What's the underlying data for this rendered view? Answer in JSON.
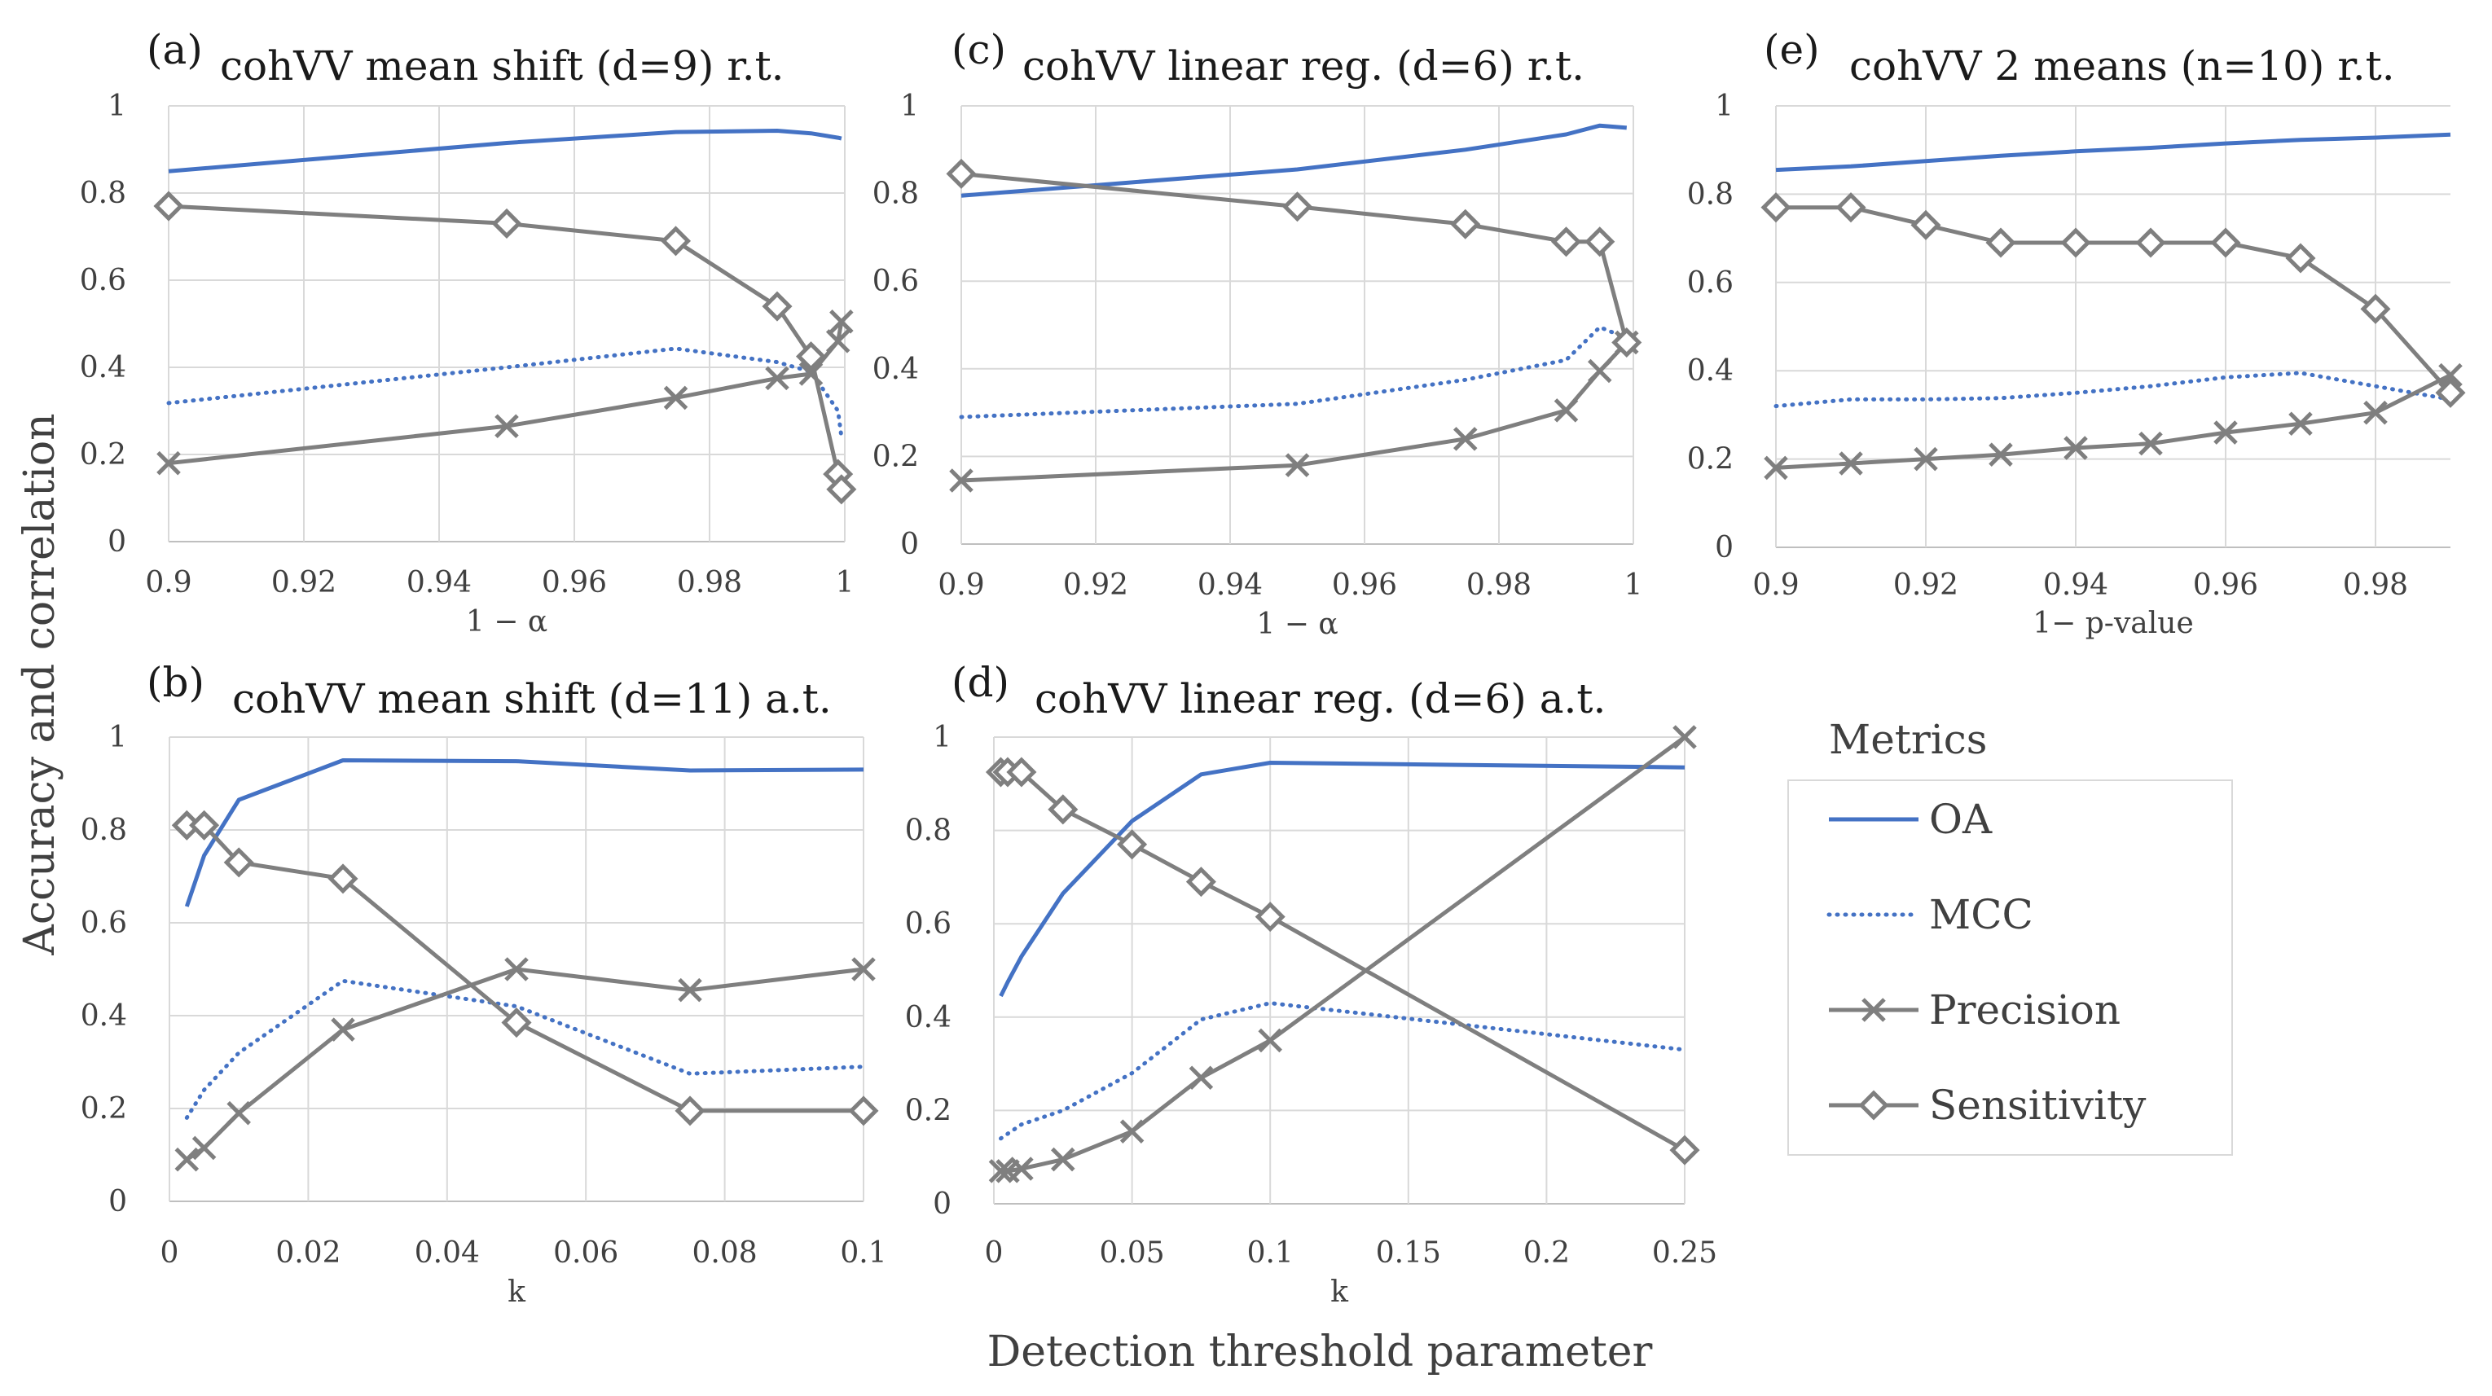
{
  "figure": {
    "ylabel": "Accuracy and correlation",
    "xlabel": "Detection threshold parameter"
  },
  "legend": {
    "title": "Metrics",
    "items": [
      {
        "name": "OA",
        "style": "solid",
        "color": "#4472C4",
        "marker": "none"
      },
      {
        "name": "MCC",
        "style": "dotted",
        "color": "#4472C4",
        "marker": "none"
      },
      {
        "name": "Precision",
        "style": "solid",
        "color": "#7F7F7F",
        "marker": "x"
      },
      {
        "name": "Sensitivity",
        "style": "solid",
        "color": "#7F7F7F",
        "marker": "diamond"
      }
    ]
  },
  "chart_data": [
    {
      "id": "a",
      "type": "line",
      "label": "(a)",
      "title": "cohVV mean shift (d=9) r.t.",
      "xlabel": "1 − α",
      "xlim": [
        0.9,
        1
      ],
      "ylim": [
        0,
        1
      ],
      "xticks": [
        0.9,
        0.92,
        0.94,
        0.96,
        0.98,
        1
      ],
      "xtick_labels": [
        "0.9",
        "0.92",
        "0.94",
        "0.96",
        "0.98",
        "1"
      ],
      "yticks": [
        0,
        0.2,
        0.4,
        0.6,
        0.8,
        1
      ],
      "ytick_labels": [
        "0",
        "0.2",
        "0.4",
        "0.6",
        "0.8",
        "1"
      ],
      "x": [
        0.9,
        0.95,
        0.975,
        0.99,
        0.995,
        0.999,
        0.9995
      ],
      "series": [
        {
          "name": "OA",
          "values": [
            0.85,
            0.915,
            0.94,
            0.943,
            0.937,
            0.927,
            0.925
          ]
        },
        {
          "name": "MCC",
          "values": [
            0.318,
            0.4,
            0.443,
            0.412,
            0.39,
            0.3,
            0.24
          ]
        },
        {
          "name": "Precision",
          "values": [
            0.18,
            0.265,
            0.33,
            0.375,
            0.385,
            0.46,
            0.505
          ]
        },
        {
          "name": "Sensitivity",
          "values": [
            0.77,
            0.73,
            0.69,
            0.54,
            0.425,
            0.155,
            0.12
          ]
        }
      ]
    },
    {
      "id": "c",
      "type": "line",
      "label": "(c)",
      "title": "cohVV linear reg. (d=6) r.t.",
      "xlabel": "1 − α",
      "xlim": [
        0.9,
        1
      ],
      "ylim": [
        0,
        1
      ],
      "xticks": [
        0.9,
        0.92,
        0.94,
        0.96,
        0.98,
        1
      ],
      "xtick_labels": [
        "0.9",
        "0.92",
        "0.94",
        "0.96",
        "0.98",
        "1"
      ],
      "yticks": [
        0,
        0.2,
        0.4,
        0.6,
        0.8,
        1
      ],
      "ytick_labels": [
        "0",
        "0.2",
        "0.4",
        "0.6",
        "0.8",
        "1"
      ],
      "x": [
        0.9,
        0.95,
        0.975,
        0.99,
        0.995,
        0.999
      ],
      "series": [
        {
          "name": "OA",
          "values": [
            0.795,
            0.855,
            0.9,
            0.935,
            0.955,
            0.95
          ]
        },
        {
          "name": "MCC",
          "values": [
            0.29,
            0.32,
            0.375,
            0.42,
            0.495,
            0.47
          ]
        },
        {
          "name": "Precision",
          "values": [
            0.145,
            0.18,
            0.24,
            0.305,
            0.395,
            0.46
          ]
        },
        {
          "name": "Sensitivity",
          "values": [
            0.845,
            0.77,
            0.73,
            0.69,
            0.69,
            0.46
          ]
        }
      ]
    },
    {
      "id": "e",
      "type": "line",
      "label": "(e)",
      "title": "cohVV 2 means (n=10) r.t.",
      "xlabel": "1− p-value",
      "xlim": [
        0.9,
        0.99
      ],
      "ylim": [
        0,
        1
      ],
      "xticks": [
        0.9,
        0.92,
        0.94,
        0.96,
        0.98
      ],
      "xtick_labels": [
        "0.9",
        "0.92",
        "0.94",
        "0.96",
        "0.98"
      ],
      "yticks": [
        0,
        0.2,
        0.4,
        0.6,
        0.8,
        1
      ],
      "ytick_labels": [
        "0",
        "0.2",
        "0.4",
        "0.6",
        "0.8",
        "1"
      ],
      "x": [
        0.9,
        0.91,
        0.92,
        0.93,
        0.94,
        0.95,
        0.96,
        0.97,
        0.98,
        0.99
      ],
      "series": [
        {
          "name": "OA",
          "values": [
            0.855,
            0.863,
            0.875,
            0.887,
            0.897,
            0.905,
            0.915,
            0.923,
            0.928,
            0.935
          ]
        },
        {
          "name": "MCC",
          "values": [
            0.32,
            0.335,
            0.335,
            0.338,
            0.35,
            0.365,
            0.385,
            0.395,
            0.365,
            0.335
          ]
        },
        {
          "name": "Precision",
          "values": [
            0.18,
            0.19,
            0.2,
            0.21,
            0.225,
            0.235,
            0.26,
            0.28,
            0.305,
            0.39
          ]
        },
        {
          "name": "Sensitivity",
          "values": [
            0.77,
            0.77,
            0.73,
            0.69,
            0.69,
            0.69,
            0.69,
            0.655,
            0.54,
            0.35
          ]
        }
      ]
    },
    {
      "id": "b",
      "type": "line",
      "label": "(b)",
      "title": "cohVV mean shift (d=11) a.t.",
      "xlabel": "k",
      "xlim": [
        0,
        0.1
      ],
      "ylim": [
        0,
        1
      ],
      "xticks": [
        0,
        0.02,
        0.04,
        0.06,
        0.08,
        0.1
      ],
      "xtick_labels": [
        "0",
        "0.02",
        "0.04",
        "0.06",
        "0.08",
        "0.1"
      ],
      "yticks": [
        0,
        0.2,
        0.4,
        0.6,
        0.8,
        1
      ],
      "ytick_labels": [
        "0",
        "0.2",
        "0.4",
        "0.6",
        "0.8",
        "1"
      ],
      "x": [
        0.0025,
        0.005,
        0.01,
        0.025,
        0.05,
        0.075,
        0.1
      ],
      "series": [
        {
          "name": "OA",
          "values": [
            0.635,
            0.745,
            0.865,
            0.95,
            0.948,
            0.928,
            0.93
          ]
        },
        {
          "name": "MCC",
          "values": [
            0.18,
            0.24,
            0.32,
            0.475,
            0.42,
            0.275,
            0.29
          ]
        },
        {
          "name": "Precision",
          "values": [
            0.09,
            0.115,
            0.19,
            0.37,
            0.5,
            0.455,
            0.5
          ]
        },
        {
          "name": "Sensitivity",
          "values": [
            0.81,
            0.81,
            0.73,
            0.695,
            0.385,
            0.195,
            0.195
          ]
        }
      ]
    },
    {
      "id": "d",
      "type": "line",
      "label": "(d)",
      "title": "cohVV linear reg. (d=6) a.t.",
      "xlabel": "k",
      "xlim": [
        0,
        0.25
      ],
      "ylim": [
        0,
        1
      ],
      "xticks": [
        0,
        0.05,
        0.1,
        0.15,
        0.2,
        0.25
      ],
      "xtick_labels": [
        "0",
        "0.05",
        "0.1",
        "0.15",
        "0.2",
        "0.25"
      ],
      "yticks": [
        0,
        0.2,
        0.4,
        0.6,
        0.8,
        1
      ],
      "ytick_labels": [
        "0",
        "0.2",
        "0.4",
        "0.6",
        "0.8",
        "1"
      ],
      "x": [
        0.0025,
        0.005,
        0.01,
        0.025,
        0.05,
        0.075,
        0.1,
        0.25
      ],
      "series": [
        {
          "name": "OA",
          "values": [
            0.445,
            0.475,
            0.53,
            0.665,
            0.82,
            0.92,
            0.945,
            0.935
          ]
        },
        {
          "name": "MCC",
          "values": [
            0.14,
            0.15,
            0.17,
            0.2,
            0.28,
            0.395,
            0.43,
            0.33
          ]
        },
        {
          "name": "Precision",
          "values": [
            0.07,
            0.07,
            0.075,
            0.095,
            0.155,
            0.27,
            0.35,
            1.0
          ]
        },
        {
          "name": "Sensitivity",
          "values": [
            0.925,
            0.925,
            0.925,
            0.845,
            0.77,
            0.69,
            0.615,
            0.115
          ]
        }
      ]
    }
  ]
}
